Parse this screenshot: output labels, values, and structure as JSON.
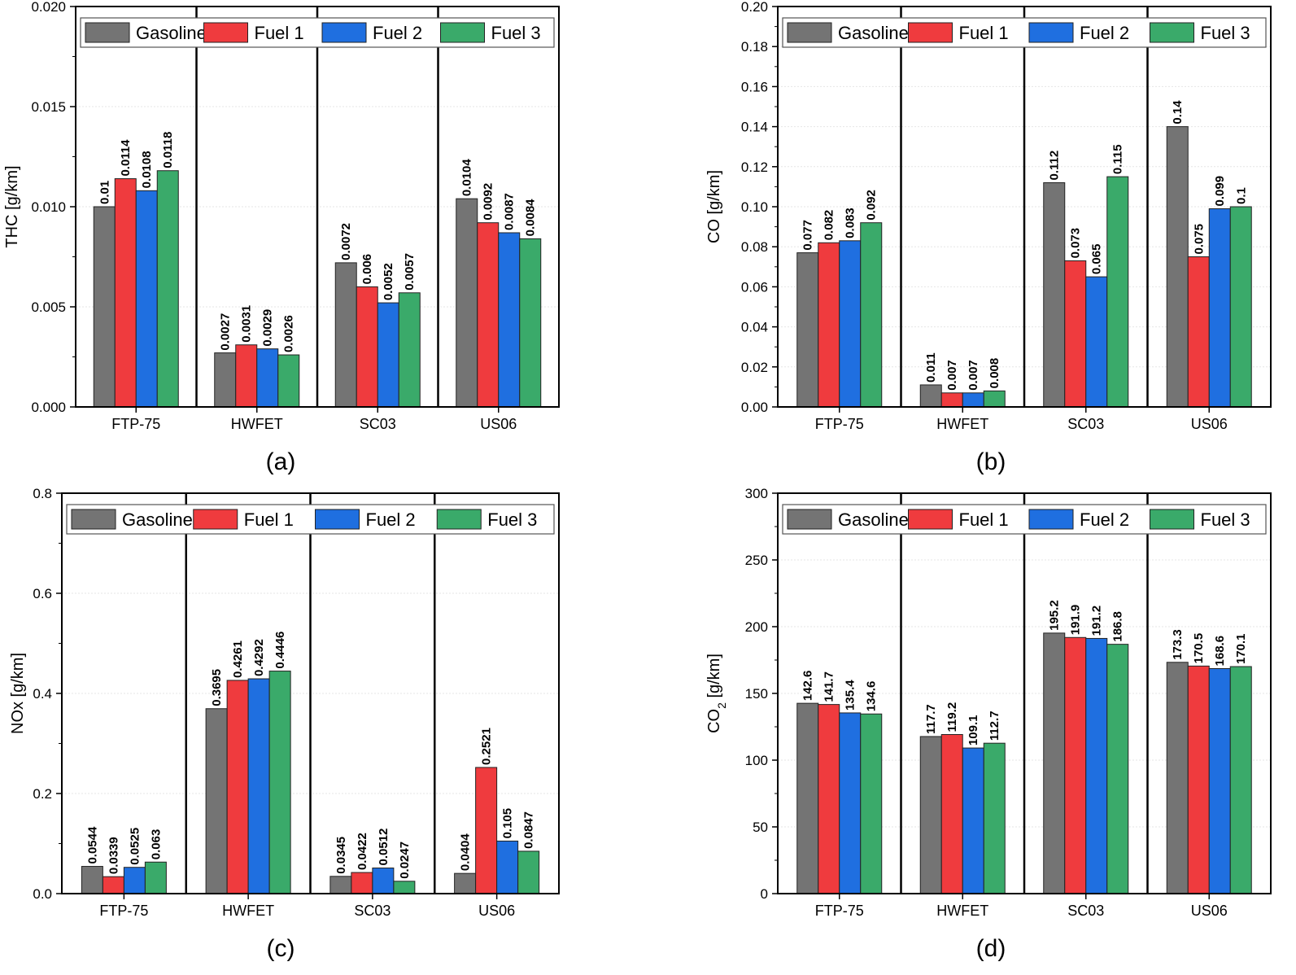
{
  "colors": {
    "Gasoline": "#747474",
    "Fuel 1": "#ef3b3e",
    "Fuel 2": "#1f6fe0",
    "Fuel 3": "#3aaa6a"
  },
  "chart_data": [
    {
      "type": "bar",
      "panel": "(a)",
      "ylabel": "THC [g/km]",
      "ylim": [
        0,
        0.02
      ],
      "yticks": [
        "0.000",
        "0.005",
        "0.010",
        "0.015",
        "0.020"
      ],
      "categories": [
        "FTP-75",
        "HWFET",
        "SC03",
        "US06"
      ],
      "legend": [
        "Gasoline",
        "Fuel 1",
        "Fuel 2",
        "Fuel 3"
      ],
      "series": [
        {
          "name": "Gasoline",
          "values": [
            0.01,
            0.0027,
            0.0072,
            0.0104
          ],
          "labels": [
            "0.01",
            "0.0027",
            "0.0072",
            "0.0104"
          ]
        },
        {
          "name": "Fuel 1",
          "values": [
            0.0114,
            0.0031,
            0.006,
            0.0092
          ],
          "labels": [
            "0.0114",
            "0.0031",
            "0.006",
            "0.0092"
          ]
        },
        {
          "name": "Fuel 2",
          "values": [
            0.0108,
            0.0029,
            0.0052,
            0.0087
          ],
          "labels": [
            "0.0108",
            "0.0029",
            "0.0052",
            "0.0087"
          ]
        },
        {
          "name": "Fuel 3",
          "values": [
            0.0118,
            0.0026,
            0.0057,
            0.0084
          ],
          "labels": [
            "0.0118",
            "0.0026",
            "0.0057",
            "0.0084"
          ]
        }
      ]
    },
    {
      "type": "bar",
      "panel": "(b)",
      "ylabel": "CO [g/km]",
      "ylim": [
        0,
        0.2
      ],
      "yticks": [
        "0.00",
        "0.02",
        "0.04",
        "0.06",
        "0.08",
        "0.10",
        "0.12",
        "0.14",
        "0.16",
        "0.18",
        "0.20"
      ],
      "categories": [
        "FTP-75",
        "HWFET",
        "SC03",
        "US06"
      ],
      "legend": [
        "Gasoline",
        "Fuel 1",
        "Fuel 2",
        "Fuel 3"
      ],
      "series": [
        {
          "name": "Gasoline",
          "values": [
            0.077,
            0.011,
            0.112,
            0.14
          ],
          "labels": [
            "0.077",
            "0.011",
            "0.112",
            "0.14"
          ]
        },
        {
          "name": "Fuel 1",
          "values": [
            0.082,
            0.007,
            0.073,
            0.075
          ],
          "labels": [
            "0.082",
            "0.007",
            "0.073",
            "0.075"
          ]
        },
        {
          "name": "Fuel 2",
          "values": [
            0.083,
            0.007,
            0.065,
            0.099
          ],
          "labels": [
            "0.083",
            "0.007",
            "0.065",
            "0.099"
          ]
        },
        {
          "name": "Fuel 3",
          "values": [
            0.092,
            0.008,
            0.115,
            0.1
          ],
          "labels": [
            "0.092",
            "0.008",
            "0.115",
            "0.1"
          ]
        }
      ]
    },
    {
      "type": "bar",
      "panel": "(c)",
      "ylabel": "NOx [g/km]",
      "ylim": [
        0,
        0.8
      ],
      "yticks": [
        "0.0",
        "0.2",
        "0.4",
        "0.6",
        "0.8"
      ],
      "categories": [
        "FTP-75",
        "HWFET",
        "SC03",
        "US06"
      ],
      "legend": [
        "Gasoline",
        "Fuel 1",
        "Fuel 2",
        "Fuel 3"
      ],
      "series": [
        {
          "name": "Gasoline",
          "values": [
            0.0544,
            0.3695,
            0.0345,
            0.0404
          ],
          "labels": [
            "0.0544",
            "0.3695",
            "0.0345",
            "0.0404"
          ]
        },
        {
          "name": "Fuel 1",
          "values": [
            0.0339,
            0.4261,
            0.0422,
            0.2521
          ],
          "labels": [
            "0.0339",
            "0.4261",
            "0.0422",
            "0.2521"
          ]
        },
        {
          "name": "Fuel 2",
          "values": [
            0.0525,
            0.4292,
            0.0512,
            0.105
          ],
          "labels": [
            "0.0525",
            "0.4292",
            "0.0512",
            "0.105"
          ]
        },
        {
          "name": "Fuel 3",
          "values": [
            0.063,
            0.4446,
            0.0247,
            0.0847
          ],
          "labels": [
            "0.063",
            "0.4446",
            "0.0247",
            "0.0847"
          ]
        }
      ]
    },
    {
      "type": "bar",
      "panel": "(d)",
      "ylabel": "CO",
      "ylabel_sub": "2",
      "ylabel_suffix": " [g/km]",
      "ylim": [
        0,
        300
      ],
      "yticks": [
        "0",
        "50",
        "100",
        "150",
        "200",
        "250",
        "300"
      ],
      "categories": [
        "FTP-75",
        "HWFET",
        "SC03",
        "US06"
      ],
      "legend": [
        "Gasoline",
        "Fuel 1",
        "Fuel 2",
        "Fuel 3"
      ],
      "series": [
        {
          "name": "Gasoline",
          "values": [
            142.6,
            117.7,
            195.2,
            173.3
          ],
          "labels": [
            "142.6",
            "117.7",
            "195.2",
            "173.3"
          ]
        },
        {
          "name": "Fuel 1",
          "values": [
            141.7,
            119.2,
            191.9,
            170.5
          ],
          "labels": [
            "141.7",
            "119.2",
            "191.9",
            "170.5"
          ]
        },
        {
          "name": "Fuel 2",
          "values": [
            135.4,
            109.1,
            191.2,
            168.6
          ],
          "labels": [
            "135.4",
            "109.1",
            "191.2",
            "168.6"
          ]
        },
        {
          "name": "Fuel 3",
          "values": [
            134.6,
            112.7,
            186.8,
            170.1
          ],
          "labels": [
            "134.6",
            "112.7",
            "186.8",
            "170.1"
          ]
        }
      ]
    }
  ]
}
